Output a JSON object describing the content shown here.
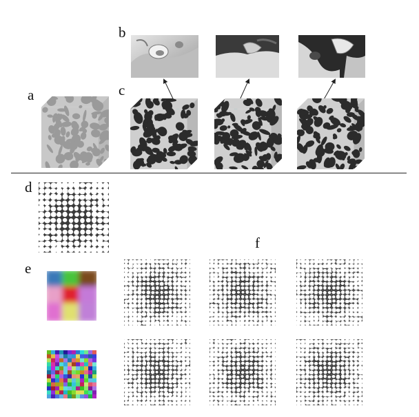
{
  "panel_labels": {
    "a": "a",
    "b": "b",
    "c": "c",
    "d": "d",
    "e": "e",
    "f": "f"
  },
  "colors": {
    "dark_phase": "#2b2b2b",
    "light_phase": "#cfcfcf",
    "marker": "#3fd6d6",
    "divider": "#222222"
  },
  "palette_large": [
    "#3a78b8",
    "#47c43a",
    "#7a4a1e",
    "#e8a0c8",
    "#e0202e",
    "#c47ad8",
    "#e070d0",
    "#e0e070",
    "#c080d8"
  ],
  "icons": [
    "arrow-icon",
    "marker-dot-icon"
  ]
}
